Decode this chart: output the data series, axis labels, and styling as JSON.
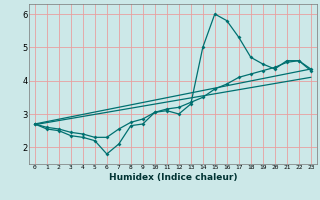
{
  "xlabel": "Humidex (Indice chaleur)",
  "bg_color": "#cce8e8",
  "grid_color": "#e8a0a0",
  "line_color": "#007070",
  "xlim": [
    -0.5,
    23.5
  ],
  "ylim": [
    1.5,
    6.3
  ],
  "xticks": [
    0,
    1,
    2,
    3,
    4,
    5,
    6,
    7,
    8,
    9,
    10,
    11,
    12,
    13,
    14,
    15,
    16,
    17,
    18,
    19,
    20,
    21,
    22,
    23
  ],
  "yticks": [
    2,
    3,
    4,
    5,
    6
  ],
  "line1_x": [
    0,
    1,
    2,
    3,
    4,
    5,
    6,
    7,
    8,
    9,
    10,
    11,
    12,
    13,
    14,
    15,
    16,
    17,
    18,
    19,
    20,
    21,
    22,
    23
  ],
  "line1_y": [
    2.7,
    2.55,
    2.5,
    2.35,
    2.3,
    2.2,
    1.8,
    2.1,
    2.65,
    2.7,
    3.05,
    3.1,
    3.0,
    3.3,
    5.0,
    6.0,
    5.8,
    5.3,
    4.7,
    4.5,
    4.35,
    4.6,
    4.6,
    4.3
  ],
  "line2_x": [
    0,
    1,
    2,
    3,
    4,
    5,
    6,
    7,
    8,
    9,
    10,
    11,
    12,
    13,
    14,
    15,
    16,
    17,
    18,
    19,
    20,
    21,
    22,
    23
  ],
  "line2_y": [
    2.7,
    2.6,
    2.55,
    2.45,
    2.4,
    2.3,
    2.3,
    2.55,
    2.75,
    2.85,
    3.05,
    3.15,
    3.2,
    3.35,
    3.5,
    3.75,
    3.9,
    4.1,
    4.2,
    4.3,
    4.4,
    4.55,
    4.6,
    4.35
  ],
  "line3_x": [
    0,
    23
  ],
  "line3_y": [
    2.7,
    4.35
  ],
  "line4_x": [
    0,
    23
  ],
  "line4_y": [
    2.68,
    4.1
  ]
}
